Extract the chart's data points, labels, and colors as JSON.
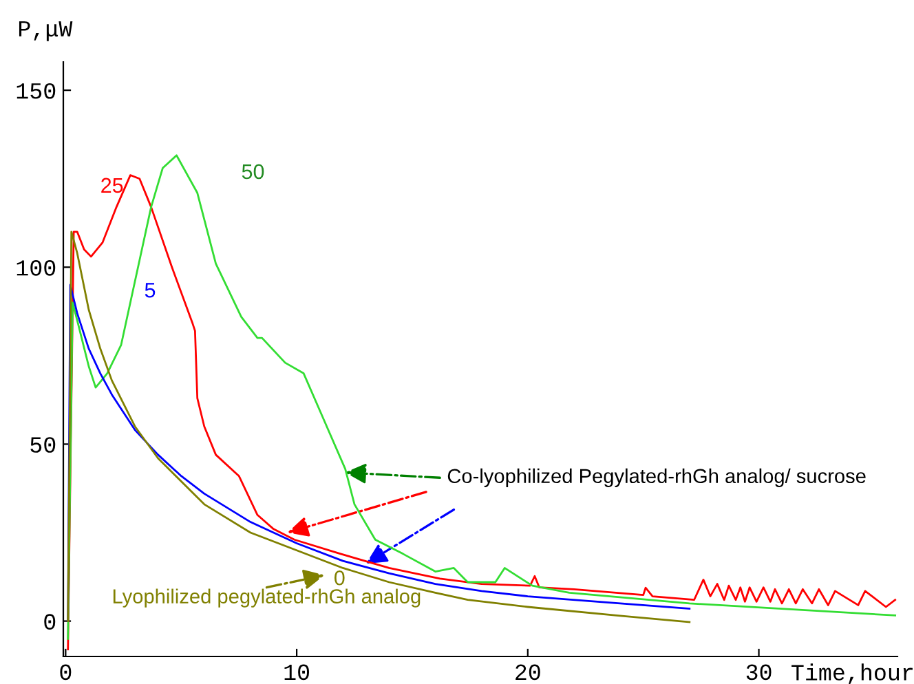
{
  "chart_data": {
    "type": "line",
    "xlabel": "Time,hour",
    "ylabel": "P,μW",
    "xlim": [
      -0.1,
      36
    ],
    "xticks": [
      0,
      10,
      20,
      30
    ],
    "ylim": [
      -10,
      158
    ],
    "yticks": [
      0,
      50,
      100,
      150
    ],
    "series": [
      {
        "name": "25",
        "color": "#ff0000",
        "x": [
          0.1,
          0.35,
          0.5,
          0.8,
          1.1,
          1.6,
          2.2,
          2.8,
          3.2,
          3.7,
          4.6,
          5.5,
          5.6,
          5.7,
          6.0,
          6.5,
          7.5,
          8.3,
          9.0,
          9.9,
          11.9,
          14.0,
          16.2,
          18.0,
          20.1,
          20.3,
          20.5,
          22.0,
          25.0,
          25.1,
          25.4,
          27.2,
          27.6,
          27.9,
          28.2,
          28.5,
          28.7,
          29.0,
          29.2,
          29.4,
          29.6,
          29.9,
          30.2,
          30.5,
          30.7,
          31.0,
          31.3,
          31.6,
          31.9,
          32.3,
          32.6,
          33.0,
          33.3,
          34.3,
          34.6,
          35.5,
          35.9
        ],
        "values": [
          -8,
          110,
          110,
          105,
          103,
          107,
          117,
          126,
          125,
          117,
          100,
          84,
          82,
          63,
          55,
          47,
          41,
          30,
          26,
          23,
          19,
          15,
          12,
          10.5,
          10,
          12.7,
          9.5,
          9,
          7.4,
          9.4,
          7,
          6,
          11.7,
          7,
          10.5,
          6,
          10,
          6,
          9.5,
          5.5,
          9.5,
          5.5,
          9.5,
          5.5,
          9,
          5,
          9,
          5,
          9,
          5,
          9,
          4.5,
          8.5,
          4.5,
          8.5,
          4,
          6
        ]
      },
      {
        "name": "50",
        "color": "#33dd33",
        "x": [
          0.1,
          0.3,
          0.5,
          1.0,
          1.3,
          1.8,
          2.4,
          2.9,
          3.2,
          3.7,
          4.2,
          4.8,
          5.7,
          6.5,
          7.6,
          8.3,
          8.5,
          9.5,
          10.3,
          11.1,
          12.1,
          12.5,
          13.4,
          14.6,
          16.0,
          16.8,
          17.4,
          18.6,
          19.0,
          20.2,
          21.8,
          27.0,
          35.9
        ],
        "values": [
          -5,
          90,
          85,
          72,
          66,
          70,
          78,
          93,
          102,
          117,
          128,
          131.6,
          121,
          101,
          86,
          80,
          80,
          73,
          70,
          58,
          43,
          33,
          23,
          19,
          14,
          15,
          11,
          11,
          15,
          10,
          8,
          5,
          1.6
        ]
      },
      {
        "name": "5",
        "color": "#0000ff",
        "x": [
          0.1,
          0.2,
          0.5,
          1,
          1.5,
          2,
          3,
          4,
          5,
          6,
          8,
          10,
          12,
          14,
          16,
          18,
          20,
          24,
          27
        ],
        "values": [
          0,
          95,
          87,
          77,
          70,
          64,
          54,
          47,
          41,
          36,
          28,
          22,
          17,
          13.5,
          10.5,
          8.5,
          7,
          5,
          3.5
        ]
      },
      {
        "name": "0",
        "color": "#808000",
        "x": [
          0.1,
          0.25,
          0.5,
          1,
          1.5,
          2,
          3,
          4,
          6,
          8,
          10,
          12,
          14,
          16,
          17.4,
          20,
          24,
          27
        ],
        "values": [
          0,
          110,
          104,
          88,
          77,
          68,
          55,
          46,
          33,
          25,
          20,
          15,
          11,
          8,
          6,
          4,
          1.5,
          -0.3
        ]
      }
    ],
    "annotations": [
      {
        "text": "Co-lyophilized Pegylated-rhGh analog/ sucrose",
        "x": 12.1,
        "y": 42
      },
      "Lyophilized pegylated-rhGh analog"
    ]
  }
}
